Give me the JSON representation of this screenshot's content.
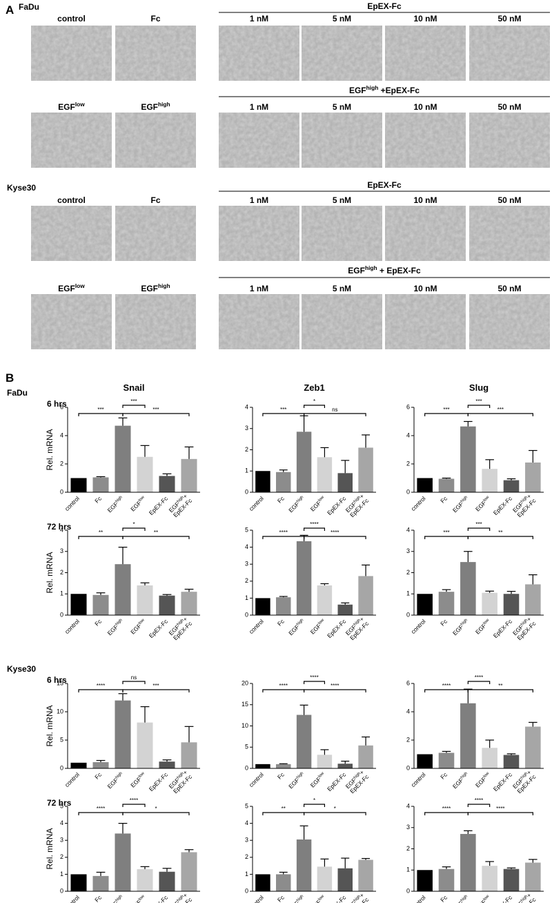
{
  "panel_a": {
    "label": "A",
    "groups": [
      {
        "cell_line": "FaDu",
        "rows": [
          {
            "left": [
              "control",
              "Fc"
            ],
            "right_title": "EpEX-Fc",
            "right": [
              "1 nM",
              "5 nM",
              "10 nM",
              "50 nM"
            ]
          },
          {
            "left": [
              [
                "EGF",
                "low"
              ],
              [
                "EGF",
                "high"
              ]
            ],
            "right_title": [
              "EGF",
              "high",
              " +EpEX-Fc"
            ],
            "right": [
              "1 nM",
              "5 nM",
              "10 nM",
              "50 nM"
            ]
          }
        ]
      },
      {
        "cell_line": "Kyse30",
        "rows": [
          {
            "left": [
              "control",
              "Fc"
            ],
            "right_title": "EpEX-Fc",
            "right": [
              "1 nM",
              "5 nM",
              "10 nM",
              "50 nM"
            ]
          },
          {
            "left": [
              [
                "EGF",
                "low"
              ],
              [
                "EGF",
                "high"
              ]
            ],
            "right_title": [
              "EGF",
              "high",
              " + EpEX-Fc"
            ],
            "right": [
              "1 nM",
              "5 nM",
              "10 nM",
              "50 nM"
            ]
          }
        ]
      }
    ]
  },
  "panel_b_label": "B",
  "chart_data": [
    {
      "type": "bar",
      "title": "Snail",
      "cell_line": "FaDu",
      "time": "6 hrs",
      "ylabel": "Rel. mRNA",
      "categories": [
        "control",
        "Fc",
        [
          "EGF",
          "high"
        ],
        [
          "EGF",
          "low"
        ],
        "EpEX-Fc",
        [
          [
            "EGF",
            "high",
            "+"
          ],
          [
            "EpEX-Fc"
          ]
        ]
      ],
      "values": [
        1,
        1.05,
        4.7,
        2.5,
        1.15,
        2.35
      ],
      "errors": [
        0,
        0.05,
        0.55,
        0.8,
        0.15,
        0.85
      ],
      "colors": [
        "#000000",
        "#8c8c8c",
        "#7f7f7f",
        "#d3d3d3",
        "#555555",
        "#a6a6a6"
      ],
      "ylim": [
        0,
        6
      ],
      "yticks": [
        0,
        2,
        4,
        6
      ],
      "comparisons": [
        {
          "from": 0,
          "to": 2,
          "label": "***"
        },
        {
          "from": 2,
          "to": 3,
          "label": "***"
        },
        {
          "from": 2,
          "to": 5,
          "label": "***"
        }
      ]
    },
    {
      "type": "bar",
      "title": "Zeb1",
      "categories": [
        "control",
        "Fc",
        [
          "EGF",
          "high"
        ],
        [
          "EGF",
          "low"
        ],
        "EpEX-Fc",
        [
          [
            "EGF",
            "high",
            "+"
          ],
          [
            "EpEX-Fc"
          ]
        ]
      ],
      "values": [
        1,
        0.95,
        2.85,
        1.65,
        0.9,
        2.1
      ],
      "errors": [
        0,
        0.1,
        0.75,
        0.45,
        0.6,
        0.6
      ],
      "colors": [
        "#000000",
        "#8c8c8c",
        "#7f7f7f",
        "#d3d3d3",
        "#555555",
        "#a6a6a6"
      ],
      "ylim": [
        0,
        4
      ],
      "yticks": [
        0,
        1,
        2,
        3,
        4
      ],
      "comparisons": [
        {
          "from": 0,
          "to": 2,
          "label": "***"
        },
        {
          "from": 2,
          "to": 3,
          "label": "*"
        },
        {
          "from": 2,
          "to": 5,
          "label": "ns"
        }
      ]
    },
    {
      "type": "bar",
      "title": "Slug",
      "categories": [
        "control",
        "Fc",
        [
          "EGF",
          "high"
        ],
        [
          "EGF",
          "low"
        ],
        "EpEX-Fc",
        [
          [
            "EGF",
            "high",
            "+"
          ],
          [
            "EpEX-Fc"
          ]
        ]
      ],
      "values": [
        1,
        0.95,
        4.65,
        1.65,
        0.85,
        2.1
      ],
      "errors": [
        0,
        0.05,
        0.35,
        0.65,
        0.1,
        0.85
      ],
      "colors": [
        "#000000",
        "#8c8c8c",
        "#7f7f7f",
        "#d3d3d3",
        "#555555",
        "#a6a6a6"
      ],
      "ylim": [
        0,
        6
      ],
      "yticks": [
        0,
        2,
        4,
        6
      ],
      "comparisons": [
        {
          "from": 0,
          "to": 2,
          "label": "***"
        },
        {
          "from": 2,
          "to": 3,
          "label": "***"
        },
        {
          "from": 2,
          "to": 5,
          "label": "***"
        }
      ]
    },
    {
      "type": "bar",
      "time": "72 hrs",
      "ylabel": "Rel. mRNA",
      "categories": [
        "control",
        "Fc",
        [
          "EGF",
          "high"
        ],
        [
          "EGF",
          "low"
        ],
        "EpEX-Fc",
        [
          [
            "EGF",
            "high",
            "+"
          ],
          [
            "EpEX-Fc"
          ]
        ]
      ],
      "values": [
        1,
        0.95,
        2.4,
        1.4,
        0.92,
        1.1
      ],
      "errors": [
        0,
        0.1,
        0.8,
        0.12,
        0.05,
        0.12
      ],
      "colors": [
        "#000000",
        "#8c8c8c",
        "#7f7f7f",
        "#d3d3d3",
        "#555555",
        "#a6a6a6"
      ],
      "ylim": [
        0,
        4
      ],
      "yticks": [
        0,
        1,
        2,
        3,
        4
      ],
      "comparisons": [
        {
          "from": 0,
          "to": 2,
          "label": "**"
        },
        {
          "from": 2,
          "to": 3,
          "label": "*"
        },
        {
          "from": 2,
          "to": 5,
          "label": "**"
        }
      ]
    },
    {
      "type": "bar",
      "categories": [
        "control",
        "Fc",
        [
          "EGF",
          "high"
        ],
        [
          "EGF",
          "low"
        ],
        "EpEX-Fc",
        [
          [
            "EGF",
            "high",
            "+"
          ],
          [
            "EpEX-Fc"
          ]
        ]
      ],
      "values": [
        1,
        1.05,
        4.35,
        1.75,
        0.62,
        2.3
      ],
      "errors": [
        0,
        0.05,
        0.35,
        0.1,
        0.1,
        0.65
      ],
      "colors": [
        "#000000",
        "#8c8c8c",
        "#7f7f7f",
        "#d3d3d3",
        "#555555",
        "#a6a6a6"
      ],
      "ylim": [
        0,
        5
      ],
      "yticks": [
        0,
        1,
        2,
        3,
        4,
        5
      ],
      "comparisons": [
        {
          "from": 0,
          "to": 2,
          "label": "****"
        },
        {
          "from": 2,
          "to": 3,
          "label": "****"
        },
        {
          "from": 2,
          "to": 5,
          "label": "****"
        }
      ]
    },
    {
      "type": "bar",
      "categories": [
        "control",
        "Fc",
        [
          "EGF",
          "high"
        ],
        [
          "EGF",
          "low"
        ],
        "EpEX-Fc",
        [
          [
            "EGF",
            "high",
            "+"
          ],
          [
            "EpEX-Fc"
          ]
        ]
      ],
      "values": [
        1,
        1.1,
        2.5,
        1.05,
        1.0,
        1.45
      ],
      "errors": [
        0,
        0.1,
        0.5,
        0.08,
        0.12,
        0.45
      ],
      "colors": [
        "#000000",
        "#8c8c8c",
        "#7f7f7f",
        "#d3d3d3",
        "#555555",
        "#a6a6a6"
      ],
      "ylim": [
        0,
        4
      ],
      "yticks": [
        0,
        1,
        2,
        3,
        4
      ],
      "comparisons": [
        {
          "from": 0,
          "to": 2,
          "label": "***"
        },
        {
          "from": 2,
          "to": 3,
          "label": "***"
        },
        {
          "from": 2,
          "to": 5,
          "label": "**"
        }
      ]
    },
    {
      "type": "bar",
      "cell_line": "Kyse30",
      "time": "6 hrs",
      "ylabel": "Rel. mRNA",
      "categories": [
        "control",
        "Fc",
        [
          "EGF",
          "high"
        ],
        [
          "EGF",
          "low"
        ],
        "EpEX-Fc",
        [
          [
            "EGF",
            "high",
            "+"
          ],
          [
            "EpEX-Fc"
          ]
        ]
      ],
      "values": [
        1,
        1.1,
        12,
        8.1,
        1.2,
        4.6
      ],
      "errors": [
        0,
        0.3,
        1.2,
        2.8,
        0.3,
        2.8
      ],
      "colors": [
        "#000000",
        "#8c8c8c",
        "#7f7f7f",
        "#d3d3d3",
        "#555555",
        "#a6a6a6"
      ],
      "ylim": [
        0,
        15
      ],
      "yticks": [
        0,
        5,
        10,
        15
      ],
      "comparisons": [
        {
          "from": 0,
          "to": 2,
          "label": "****"
        },
        {
          "from": 2,
          "to": 3,
          "label": "ns"
        },
        {
          "from": 2,
          "to": 5,
          "label": "***"
        }
      ]
    },
    {
      "type": "bar",
      "categories": [
        "control",
        "Fc",
        [
          "EGF",
          "high"
        ],
        [
          "EGF",
          "low"
        ],
        "EpEX-Fc",
        [
          [
            "EGF",
            "high",
            "+"
          ],
          [
            "EpEX-Fc"
          ]
        ]
      ],
      "values": [
        1,
        1,
        12.6,
        3.2,
        1.1,
        5.4
      ],
      "errors": [
        0,
        0.1,
        2.3,
        1.2,
        0.6,
        2.0
      ],
      "colors": [
        "#000000",
        "#8c8c8c",
        "#7f7f7f",
        "#d3d3d3",
        "#555555",
        "#a6a6a6"
      ],
      "ylim": [
        0,
        20
      ],
      "yticks": [
        0,
        5,
        10,
        15,
        20
      ],
      "comparisons": [
        {
          "from": 0,
          "to": 2,
          "label": "****"
        },
        {
          "from": 2,
          "to": 3,
          "label": "****"
        },
        {
          "from": 2,
          "to": 5,
          "label": "****"
        }
      ]
    },
    {
      "type": "bar",
      "categories": [
        "control",
        "Fc",
        [
          "EGF",
          "high"
        ],
        [
          "EGF",
          "low"
        ],
        "EpEX-Fc",
        [
          [
            "EGF",
            "high",
            "+"
          ],
          [
            "EpEX-Fc"
          ]
        ]
      ],
      "values": [
        1,
        1.1,
        4.6,
        1.45,
        0.95,
        2.95
      ],
      "errors": [
        0,
        0.1,
        1.0,
        0.55,
        0.08,
        0.3
      ],
      "colors": [
        "#000000",
        "#8c8c8c",
        "#7f7f7f",
        "#d3d3d3",
        "#555555",
        "#a6a6a6"
      ],
      "ylim": [
        0,
        6
      ],
      "yticks": [
        0,
        2,
        4,
        6
      ],
      "comparisons": [
        {
          "from": 0,
          "to": 2,
          "label": "****"
        },
        {
          "from": 2,
          "to": 3,
          "label": "****"
        },
        {
          "from": 2,
          "to": 5,
          "label": "**"
        }
      ]
    },
    {
      "type": "bar",
      "time": "72 hrs",
      "ylabel": "Rel. mRNA",
      "categories": [
        "control",
        "Fc",
        [
          "EGF",
          "high"
        ],
        [
          "EGF",
          "low"
        ],
        "EpEX-Fc",
        [
          [
            "EGF",
            "high",
            "+"
          ],
          [
            "EpEX-Fc"
          ]
        ]
      ],
      "values": [
        1,
        0.9,
        3.4,
        1.3,
        1.15,
        2.3
      ],
      "errors": [
        0,
        0.22,
        0.6,
        0.15,
        0.2,
        0.15
      ],
      "colors": [
        "#000000",
        "#8c8c8c",
        "#7f7f7f",
        "#d3d3d3",
        "#555555",
        "#a6a6a6"
      ],
      "ylim": [
        0,
        5
      ],
      "yticks": [
        0,
        1,
        2,
        3,
        4,
        5
      ],
      "comparisons": [
        {
          "from": 0,
          "to": 2,
          "label": "****"
        },
        {
          "from": 2,
          "to": 3,
          "label": "****"
        },
        {
          "from": 2,
          "to": 5,
          "label": "*"
        }
      ]
    },
    {
      "type": "bar",
      "categories": [
        "control",
        "Fc",
        [
          "EGF",
          "high"
        ],
        [
          "EGF",
          "low"
        ],
        "EpEX-Fc",
        [
          [
            "EGF",
            "high",
            "+"
          ],
          [
            "EpEX-Fc"
          ]
        ]
      ],
      "values": [
        1,
        1.0,
        3.05,
        1.45,
        1.35,
        1.85
      ],
      "errors": [
        0,
        0.12,
        0.8,
        0.45,
        0.6,
        0.08
      ],
      "colors": [
        "#000000",
        "#8c8c8c",
        "#7f7f7f",
        "#d3d3d3",
        "#555555",
        "#a6a6a6"
      ],
      "ylim": [
        0,
        5
      ],
      "yticks": [
        0,
        1,
        2,
        3,
        4,
        5
      ],
      "comparisons": [
        {
          "from": 0,
          "to": 2,
          "label": "**"
        },
        {
          "from": 2,
          "to": 3,
          "label": "*"
        },
        {
          "from": 2,
          "to": 5,
          "label": "*"
        }
      ]
    },
    {
      "type": "bar",
      "categories": [
        "control",
        "Fc",
        [
          "EGF",
          "high"
        ],
        [
          "EGF",
          "low"
        ],
        "EpEX-Fc",
        [
          [
            "EGF",
            "high",
            "+"
          ],
          [
            "EpEX-Fc"
          ]
        ]
      ],
      "values": [
        1,
        1.05,
        2.7,
        1.2,
        1.05,
        1.35
      ],
      "errors": [
        0,
        0.1,
        0.15,
        0.2,
        0.05,
        0.15
      ],
      "colors": [
        "#000000",
        "#8c8c8c",
        "#7f7f7f",
        "#d3d3d3",
        "#555555",
        "#a6a6a6"
      ],
      "ylim": [
        0,
        4
      ],
      "yticks": [
        0,
        1,
        2,
        3,
        4
      ],
      "comparisons": [
        {
          "from": 0,
          "to": 2,
          "label": "****"
        },
        {
          "from": 2,
          "to": 3,
          "label": "****"
        },
        {
          "from": 2,
          "to": 5,
          "label": "****"
        }
      ]
    }
  ]
}
